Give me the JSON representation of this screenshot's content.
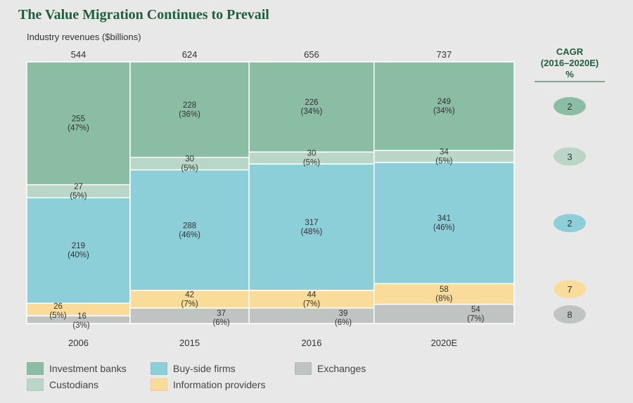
{
  "title": "The Value Migration Continues to Prevail",
  "subtitle": "Industry revenues ($billions)",
  "cagr": {
    "header_line1": "CAGR",
    "header_line2": "(2016–2020E)",
    "header_line3": "%",
    "values": [
      {
        "series": "Investment banks",
        "value": "2"
      },
      {
        "series": "Custodians",
        "value": "3"
      },
      {
        "series": "Buy-side firms",
        "value": "2"
      },
      {
        "series": "Information providers",
        "value": "7"
      },
      {
        "series": "Exchanges",
        "value": "8"
      }
    ]
  },
  "legend": [
    {
      "name": "Investment banks",
      "color": "#8bbca4"
    },
    {
      "name": "Custodians",
      "color": "#b9d6c6"
    },
    {
      "name": "Buy-side firms",
      "color": "#8dcfd8"
    },
    {
      "name": "Information providers",
      "color": "#fadc9a"
    },
    {
      "name": "Exchanges",
      "color": "#bfc4c3"
    }
  ],
  "chart_data": {
    "type": "bar",
    "categories": [
      "2006",
      "2015",
      "2016",
      "2020E"
    ],
    "totals": [
      "544",
      "624",
      "656",
      "737"
    ],
    "series": [
      {
        "name": "Investment banks",
        "color": "#8bbca4",
        "cagr": "2",
        "values": [
          255,
          228,
          226,
          249
        ],
        "labels": [
          "255",
          "228",
          "226",
          "249"
        ],
        "pct": [
          "(47%)",
          "(36%)",
          "(34%)",
          "(34%)"
        ]
      },
      {
        "name": "Custodians",
        "color": "#b9d6c6",
        "cagr": "3",
        "values": [
          27,
          30,
          30,
          34
        ],
        "labels": [
          "27",
          "30",
          "30",
          "34"
        ],
        "pct": [
          "(5%)",
          "(5%)",
          "(5%)",
          "(5%)"
        ]
      },
      {
        "name": "Buy-side firms",
        "color": "#8dcfd8",
        "cagr": "2",
        "values": [
          219,
          288,
          317,
          341
        ],
        "labels": [
          "219",
          "288",
          "317",
          "341"
        ],
        "pct": [
          "(40%)",
          "(46%)",
          "(48%)",
          "(46%)"
        ]
      },
      {
        "name": "Information providers",
        "color": "#fadc9a",
        "cagr": "7",
        "values": [
          26,
          42,
          44,
          58
        ],
        "labels": [
          "26",
          "42",
          "44",
          "58"
        ],
        "pct": [
          "(5%)",
          "(7%)",
          "(7%)",
          "(8%)"
        ]
      },
      {
        "name": "Exchanges",
        "color": "#bfc4c3",
        "cagr": "8",
        "values": [
          16,
          37,
          39,
          54
        ],
        "labels": [
          "16",
          "37",
          "39",
          "54"
        ],
        "pct": [
          "(3%)",
          "(6%)",
          "(6%)",
          "(7%)"
        ]
      }
    ]
  }
}
